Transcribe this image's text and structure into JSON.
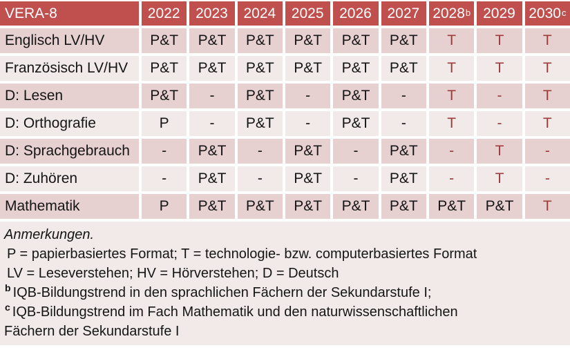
{
  "colors": {
    "header_bg": "#C0504D",
    "row_dark": "#E6D0D0",
    "row_light": "#F2E9E9",
    "notes_bg": "#F2E9E9",
    "accent_text": "#9C3B3B",
    "body_text": "#151515"
  },
  "table": {
    "title": "VERA-8",
    "years": [
      {
        "label": "2022",
        "sup": ""
      },
      {
        "label": "2023",
        "sup": ""
      },
      {
        "label": "2024",
        "sup": ""
      },
      {
        "label": "2025",
        "sup": ""
      },
      {
        "label": "2026",
        "sup": ""
      },
      {
        "label": "2027",
        "sup": ""
      },
      {
        "label": "2028",
        "sup": "b"
      },
      {
        "label": "2029",
        "sup": ""
      },
      {
        "label": "2030",
        "sup": "c"
      }
    ],
    "rows": [
      {
        "label": "Englisch LV/HV",
        "cells": [
          "P&T",
          "P&T",
          "P&T",
          "P&T",
          "P&T",
          "P&T",
          "T",
          "T",
          "T"
        ]
      },
      {
        "label": "Französisch LV/HV",
        "cells": [
          "P&T",
          "P&T",
          "P&T",
          "P&T",
          "P&T",
          "P&T",
          "T",
          "T",
          "T"
        ]
      },
      {
        "label": "D: Lesen",
        "cells": [
          "P&T",
          "-",
          "P&T",
          "-",
          "P&T",
          "-",
          "T",
          "-",
          "T"
        ]
      },
      {
        "label": "D: Orthografie",
        "cells": [
          "P",
          "-",
          "P&T",
          "-",
          "P&T",
          "-",
          "T",
          "-",
          "T"
        ]
      },
      {
        "label": "D: Sprachgebrauch",
        "cells": [
          "-",
          "P&T",
          "-",
          "P&T",
          "-",
          "P&T",
          "-",
          "T",
          "-"
        ]
      },
      {
        "label": "D: Zuhören",
        "cells": [
          "-",
          "P&T",
          "-",
          "P&T",
          "-",
          "P&T",
          "-",
          "T",
          "-"
        ]
      },
      {
        "label": "Mathematik",
        "cells": [
          "P",
          "P&T",
          "P&T",
          "P&T",
          "P&T",
          "P&T",
          "P&T",
          "P&T",
          "T"
        ]
      }
    ]
  },
  "notes": {
    "heading": "Anmerkungen.",
    "lines": [
      {
        "sup": "",
        "text": "P = papierbasiertes Format; T = technologie- bzw. computerbasiertes Format"
      },
      {
        "sup": "",
        "text": "LV = Leseverstehen; HV = Hörverstehen; D = Deutsch"
      },
      {
        "sup": "b",
        "text": "IQB-Bildungstrend in den sprachlichen Fächern der Sekundarstufe I;"
      },
      {
        "sup": "c",
        "text": "IQB-Bildungstrend im Fach Mathematik und den naturwissenschaftlichen Fächern der Sekundarstufe I"
      }
    ]
  }
}
